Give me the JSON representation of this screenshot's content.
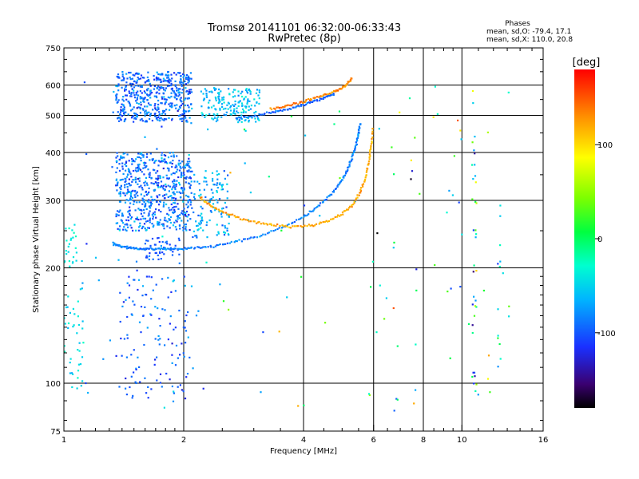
{
  "chart_data": {
    "type": "scatter",
    "title": "Tromsø 20141101 06:32:00-06:33:43",
    "subtitle": "RwPretec (8p)",
    "xlabel": "Frequency [MHz]",
    "ylabel": "Stationary phase Virtual Height [km]",
    "x_scale": "log",
    "y_scale": "log",
    "xlim": [
      1,
      16
    ],
    "ylim": [
      75,
      750
    ],
    "x_ticks": [
      "1",
      "2",
      "4",
      "6",
      "8",
      "10",
      "16"
    ],
    "x_tick_values": [
      1,
      2,
      4,
      6,
      8,
      10,
      16
    ],
    "y_ticks": [
      "75",
      "100",
      "200",
      "300",
      "400",
      "500",
      "600",
      "750"
    ],
    "y_tick_values": [
      75,
      100,
      200,
      300,
      400,
      500,
      600,
      750
    ],
    "grid": true,
    "phase_info": {
      "heading": "Phases",
      "line_o": "mean, sd,O: -79.4, 17.1",
      "line_x": "mean, sd,X: 110.0, 20.8"
    },
    "colorbar": {
      "label": "[deg]",
      "tick_labels": [
        "100",
        "0",
        "-100"
      ],
      "tick_values": [
        100,
        0,
        -100
      ],
      "range": [
        -180,
        180
      ],
      "colormap": "rainbow"
    },
    "traces": [
      {
        "x": [
          1.33,
          1.38,
          1.45,
          1.52,
          1.6,
          1.7,
          1.82,
          1.95,
          2.1,
          2.3,
          2.55,
          2.85,
          3.2,
          3.6,
          4.0,
          4.3,
          4.6,
          4.85,
          5.05,
          5.2,
          5.32,
          5.42,
          5.5,
          5.56
        ],
        "y": [
          232,
          228,
          226,
          225,
          224,
          224,
          224,
          224,
          225,
          227,
          231,
          237,
          245,
          257,
          272,
          287,
          305,
          325,
          345,
          370,
          395,
          420,
          450,
          480
        ],
        "phase": -85
      },
      {
        "x": [
          2.2,
          2.35,
          2.55,
          2.8,
          3.1,
          3.4,
          3.8,
          4.2,
          4.6,
          5.0,
          5.3,
          5.55,
          5.72,
          5.84,
          5.92,
          5.98
        ],
        "y": [
          305,
          290,
          277,
          268,
          262,
          258,
          256,
          258,
          265,
          277,
          292,
          315,
          345,
          380,
          420,
          470
        ],
        "phase": 120
      },
      {
        "x": [
          3.3,
          3.6,
          3.9,
          4.2,
          4.5,
          4.8,
          5.0,
          5.15,
          5.3
        ],
        "y": [
          520,
          528,
          540,
          552,
          565,
          578,
          590,
          605,
          625
        ],
        "phase": 135
      },
      {
        "x": [
          2.7,
          3.0,
          3.3,
          3.6,
          3.9,
          4.2,
          4.5,
          4.8
        ],
        "y": [
          492,
          498,
          508,
          518,
          530,
          542,
          555,
          570
        ],
        "phase": -95
      }
    ],
    "clusters": [
      {
        "x": [
          1.35,
          2.1
        ],
        "y": [
          480,
          650
        ],
        "phase": -92,
        "spread": 30,
        "count": 480
      },
      {
        "x": [
          2.2,
          3.1
        ],
        "y": [
          480,
          590
        ],
        "phase": -60,
        "spread": 25,
        "count": 180
      },
      {
        "x": [
          1.35,
          2.1
        ],
        "y": [
          250,
          400
        ],
        "phase": -88,
        "spread": 35,
        "count": 600
      },
      {
        "x": [
          2.1,
          2.6
        ],
        "y": [
          240,
          360
        ],
        "phase": -70,
        "spread": 30,
        "count": 120
      },
      {
        "x": [
          1.6,
          1.95
        ],
        "y": [
          210,
          240
        ],
        "phase": -100,
        "spread": 15,
        "count": 40
      },
      {
        "x": [
          1.0,
          1.08
        ],
        "y": [
          200,
          260
        ],
        "phase": -40,
        "spread": 15,
        "count": 25
      },
      {
        "x": [
          1.0,
          1.12
        ],
        "y": [
          95,
          180
        ],
        "phase": -45,
        "spread": 20,
        "count": 40
      },
      {
        "x": [
          1.35,
          2.05
        ],
        "y": [
          90,
          190
        ],
        "phase": -100,
        "spread": 30,
        "count": 120
      },
      {
        "x": [
          1.1,
          2.2
        ],
        "y": [
          85,
          640
        ],
        "phase": -80,
        "spread": 40,
        "count": 60
      },
      {
        "x": [
          2.2,
          5.6
        ],
        "y": [
          80,
          620
        ],
        "phase": -20,
        "spread": 120,
        "count": 30
      },
      {
        "x": [
          5.8,
          13.5
        ],
        "y": [
          82,
          620
        ],
        "phase": -10,
        "spread": 130,
        "count": 60
      },
      {
        "x": [
          10.6,
          10.9
        ],
        "y": [
          85,
          600
        ],
        "phase": -20,
        "spread": 120,
        "count": 35
      },
      {
        "x": [
          12.2,
          12.5
        ],
        "y": [
          110,
          340
        ],
        "phase": -40,
        "spread": 60,
        "count": 12
      }
    ]
  }
}
